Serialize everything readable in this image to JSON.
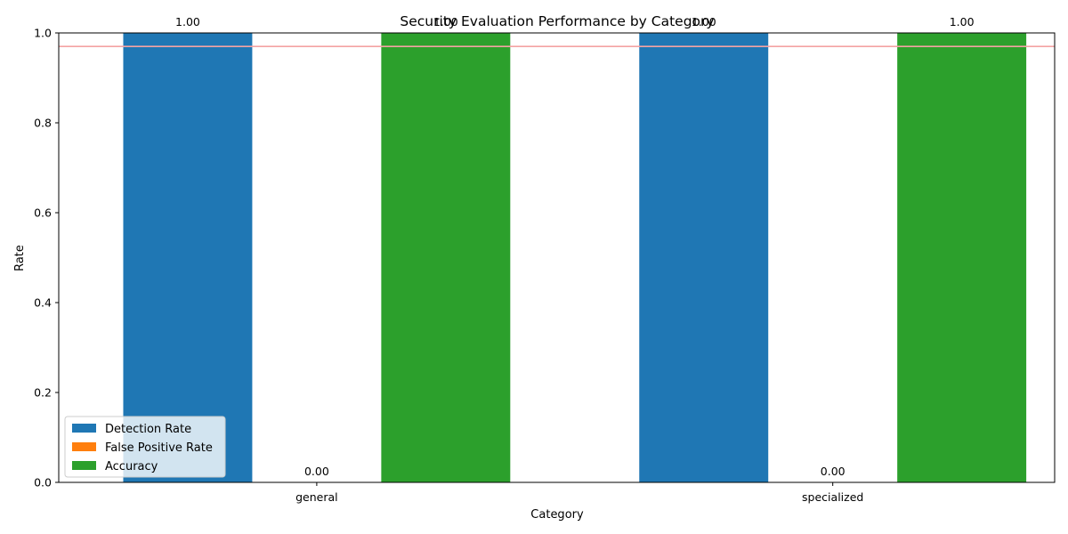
{
  "chart_data": {
    "type": "bar",
    "title": "Security Evaluation Performance by Category",
    "xlabel": "Category",
    "ylabel": "Rate",
    "categories": [
      "general",
      "specialized"
    ],
    "series": [
      {
        "name": "Detection Rate",
        "values": [
          1.0,
          1.0
        ],
        "color": "#1f77b4"
      },
      {
        "name": "False Positive Rate",
        "values": [
          0.0,
          0.0
        ],
        "color": "#ff7f0e"
      },
      {
        "name": "Accuracy",
        "values": [
          1.0,
          1.0
        ],
        "color": "#2ca02c"
      }
    ],
    "ylim": [
      0,
      1.0
    ],
    "yticks": [
      "0.0",
      "0.2",
      "0.4",
      "0.6",
      "0.8",
      "1.0"
    ],
    "reference_line": {
      "value": 0.97,
      "color": "#f4a3a3"
    },
    "data_labels": [
      [
        "1.00",
        "0.00",
        "1.00"
      ],
      [
        "1.00",
        "0.00",
        "1.00"
      ]
    ],
    "grid": false,
    "legend_position": "lower-left"
  }
}
